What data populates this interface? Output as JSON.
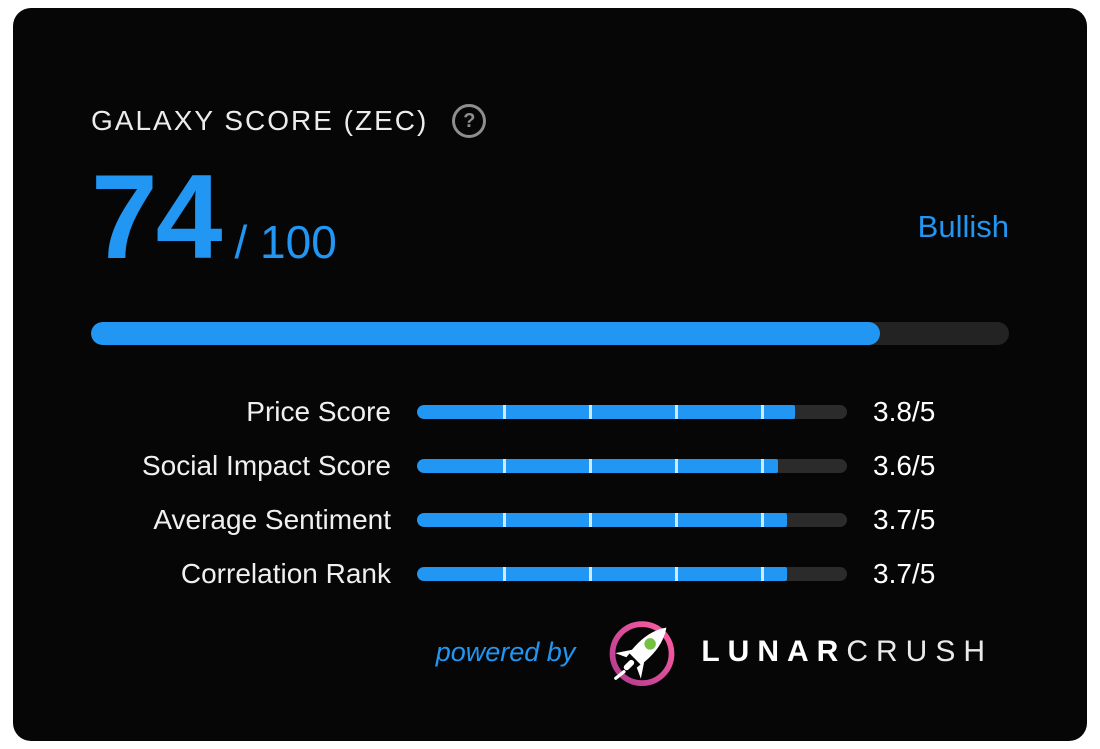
{
  "colors": {
    "accent": "#2196f3",
    "track": "#232323",
    "bg": "#060606"
  },
  "header": {
    "title": "GALAXY SCORE (ZEC)",
    "help_glyph": "?"
  },
  "score": {
    "value": "74",
    "of": "/ 100",
    "sentiment": "Bullish",
    "bar_fill_percent": 86
  },
  "metrics": [
    {
      "label": "Price Score",
      "display": "3.8/5",
      "value": 3.8,
      "max": 5,
      "fill_percent": 88
    },
    {
      "label": "Social Impact Score",
      "display": "3.6/5",
      "value": 3.6,
      "max": 5,
      "fill_percent": 84
    },
    {
      "label": "Average Sentiment",
      "display": "3.7/5",
      "value": 3.7,
      "max": 5,
      "fill_percent": 86
    },
    {
      "label": "Correlation Rank",
      "display": "3.7/5",
      "value": 3.7,
      "max": 5,
      "fill_percent": 86
    }
  ],
  "footer": {
    "powered_by": "powered by",
    "brand_bold": "LUNAR",
    "brand_light": "CRUSH",
    "logo": "lunarcrush-rocket-logo"
  },
  "chart_data": {
    "type": "bar",
    "title": "GALAXY SCORE (ZEC)",
    "overall": {
      "score": 74,
      "max": 100,
      "sentiment": "Bullish"
    },
    "categories": [
      "Price Score",
      "Social Impact Score",
      "Average Sentiment",
      "Correlation Rank"
    ],
    "values": [
      3.8,
      3.6,
      3.7,
      3.7
    ],
    "value_max": 5,
    "value_format": "x/5",
    "orientation": "horizontal",
    "grid": false,
    "legend": false
  }
}
